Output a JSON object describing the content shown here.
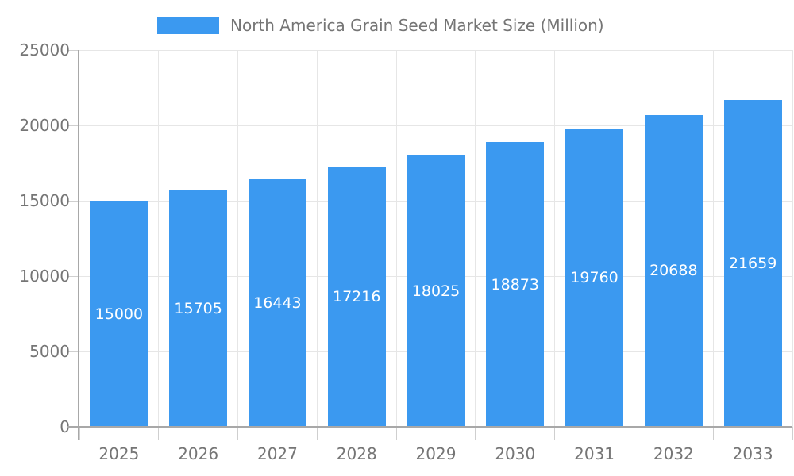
{
  "chart_data": {
    "type": "bar",
    "title": "North America Grain Seed Market Size (Million)",
    "categories": [
      "2025",
      "2026",
      "2027",
      "2028",
      "2029",
      "2030",
      "2031",
      "2032",
      "2033"
    ],
    "series": [
      {
        "name": "North America Grain Seed Market Size (Million)",
        "values": [
          15000,
          15705,
          16443,
          17216,
          18025,
          18873,
          19760,
          20688,
          21659
        ]
      }
    ],
    "xlabel": "",
    "ylabel": "",
    "ylim": [
      0,
      25000
    ],
    "y_ticks": [
      0,
      5000,
      10000,
      15000,
      20000,
      25000
    ],
    "grid": true,
    "legend_position": "top",
    "bar_labels_inside": true,
    "colors": {
      "bar": "#3B99F0",
      "grid": "#e6e6e6",
      "tick": "#cfcfcf",
      "axis_line": "#a8a8a8",
      "axis_text": "#757575",
      "bar_label": "#ffffff"
    }
  }
}
